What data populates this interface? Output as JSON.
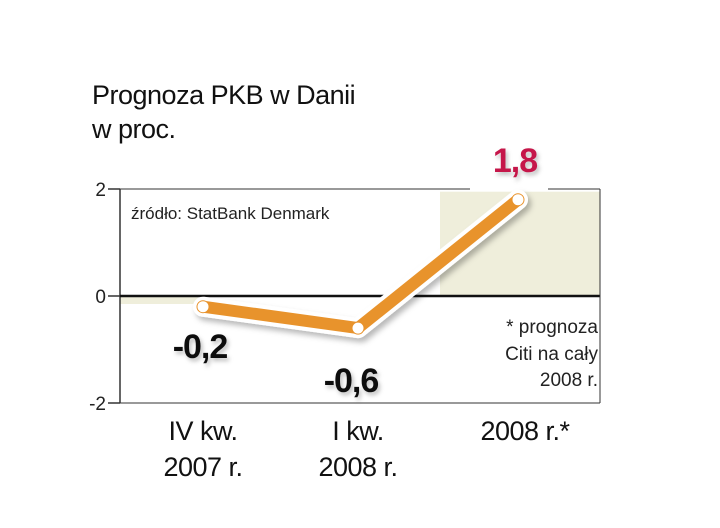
{
  "title_lines": [
    "Prognoza PKB w Danii",
    "w proc."
  ],
  "source": "źródło: StatBank Denmark",
  "footnote_lines": [
    "* prognoza",
    "Citi na cały",
    "2008 r."
  ],
  "colors": {
    "line": "#e8932c",
    "marker": "#ffffff",
    "highlight_label": "#c5174a",
    "label": "#111111",
    "band": "#efeedb",
    "zero_line": "#111111"
  },
  "chart_data": {
    "type": "line",
    "title": "Prognoza PKB w Danii w proc.",
    "categories": [
      [
        "IV kw.",
        "2007 r."
      ],
      [
        "I kw.",
        "2008 r."
      ],
      [
        "2008 r.*"
      ]
    ],
    "values": [
      -0.2,
      -0.6,
      1.8
    ],
    "data_labels": [
      "-0,2",
      "-0,6",
      "1,8"
    ],
    "y_ticks": [
      2,
      0,
      -2
    ],
    "ylim": [
      -2,
      2
    ],
    "grid": false,
    "legend": "none"
  }
}
